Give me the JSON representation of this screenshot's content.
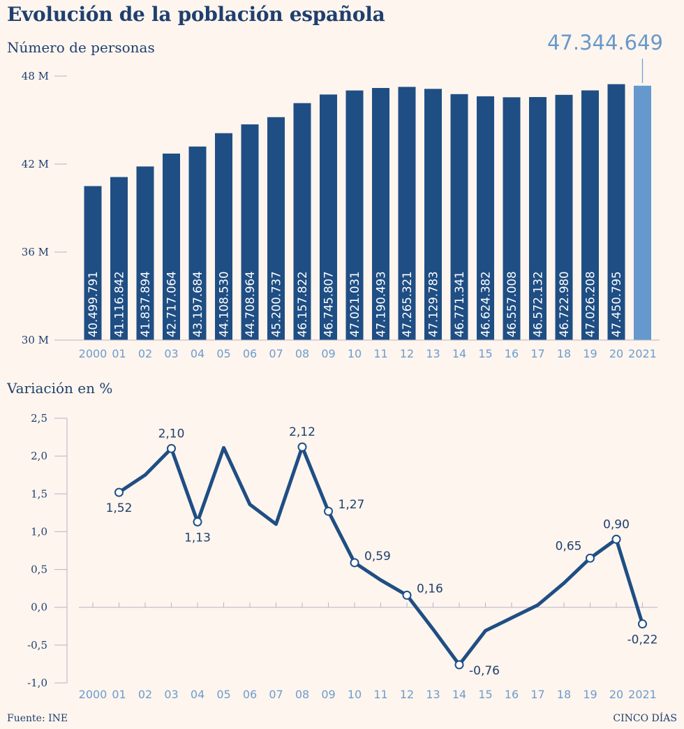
{
  "header": {
    "title": "Evolución de la población española",
    "subtitle_bars": "Número de personas",
    "highlight_value": "47.344.649",
    "subtitle_line": "Variación en %"
  },
  "footer": {
    "source": "Fuente: INE",
    "brand": "CINCO DÍAS"
  },
  "colors": {
    "bar": "#1f4e84",
    "bar_highlight": "#6599cd",
    "line": "#1f4e84",
    "text_dark": "#1f3f6e",
    "tick_light": "#6e9ccc",
    "axis": "#b9b3c4",
    "background": "#fdf5ee"
  },
  "chart_data": [
    {
      "type": "bar",
      "title": "Número de personas",
      "categories": [
        "2000",
        "01",
        "02",
        "03",
        "04",
        "05",
        "06",
        "07",
        "08",
        "09",
        "10",
        "11",
        "12",
        "13",
        "14",
        "15",
        "16",
        "17",
        "18",
        "19",
        "20",
        "2021"
      ],
      "values": [
        40499791,
        41116842,
        41837894,
        42717064,
        43197684,
        44108530,
        44708964,
        45200737,
        46157822,
        46745807,
        47021031,
        47190493,
        47265321,
        47129783,
        46771341,
        46624382,
        46557008,
        46572132,
        46722980,
        47026208,
        47450795,
        47344649
      ],
      "value_labels": [
        "40.499.791",
        "41.116.842",
        "41.837.894",
        "42.717.064",
        "43.197.684",
        "44.108.530",
        "44.708.964",
        "45.200.737",
        "46.157.822",
        "46.745.807",
        "47.021.031",
        "47.190.493",
        "47.265.321",
        "47.129.783",
        "46.771.341",
        "46.624.382",
        "46.557.008",
        "46.572.132",
        "46.722.980",
        "47.026.208",
        "47.450.795",
        ""
      ],
      "highlight_index": 21,
      "ylim": [
        30000000,
        48000000
      ],
      "yticks": [
        30000000,
        36000000,
        42000000,
        48000000
      ],
      "ytick_labels": [
        "30 M",
        "36 M",
        "42 M",
        "48 M"
      ],
      "xlabel": "",
      "ylabel": ""
    },
    {
      "type": "line",
      "title": "Variación en %",
      "categories": [
        "2000",
        "01",
        "02",
        "03",
        "04",
        "05",
        "06",
        "07",
        "08",
        "09",
        "10",
        "11",
        "12",
        "13",
        "14",
        "15",
        "16",
        "17",
        "18",
        "19",
        "20",
        "2021"
      ],
      "values": [
        null,
        1.52,
        1.75,
        2.1,
        1.13,
        2.11,
        1.36,
        1.1,
        2.12,
        1.27,
        0.59,
        0.36,
        0.16,
        -0.29,
        -0.76,
        -0.31,
        -0.14,
        0.03,
        0.32,
        0.65,
        0.9,
        -0.22
      ],
      "marked": [
        {
          "index": 1,
          "label": "1,52",
          "position": "below"
        },
        {
          "index": 3,
          "label": "2,10",
          "position": "above"
        },
        {
          "index": 4,
          "label": "1,13",
          "position": "below"
        },
        {
          "index": 8,
          "label": "2,12",
          "position": "above"
        },
        {
          "index": 9,
          "label": "1,27",
          "position": "right"
        },
        {
          "index": 10,
          "label": "0,59",
          "position": "right"
        },
        {
          "index": 12,
          "label": "0,16",
          "position": "right"
        },
        {
          "index": 14,
          "label": "-0,76",
          "position": "right-below"
        },
        {
          "index": 19,
          "label": "0,65",
          "position": "left"
        },
        {
          "index": 20,
          "label": "0,90",
          "position": "above"
        },
        {
          "index": 21,
          "label": "-0,22",
          "position": "below"
        }
      ],
      "ylim": [
        -1.0,
        2.5
      ],
      "yticks": [
        -1.0,
        -0.5,
        0.0,
        0.5,
        1.0,
        1.5,
        2.0,
        2.5
      ],
      "ytick_labels": [
        "-1,0",
        "-0,5",
        "0,0",
        "0,5",
        "1,0",
        "1,5",
        "2,0",
        "2,5"
      ],
      "xlabel": "",
      "ylabel": ""
    }
  ]
}
